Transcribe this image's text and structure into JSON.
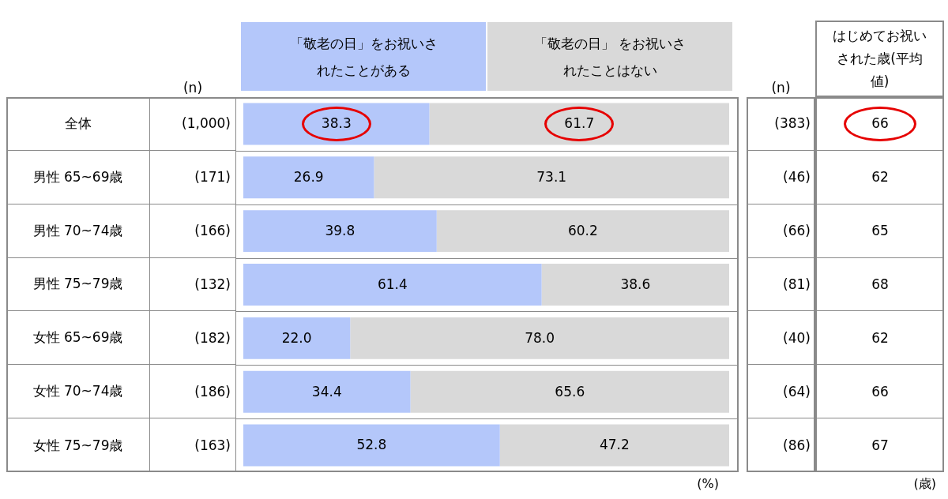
{
  "chart_data": [
    {
      "type": "bar",
      "orientation": "horizontal",
      "stacked": true,
      "legend": "top",
      "tick_labels": "y",
      "data_labels": true,
      "xlim": [
        0,
        100
      ],
      "categories": [
        "全体",
        "男性 65~69歳",
        "男性 70~74歳",
        "男性 75~79歳",
        "女性 65~69歳",
        "女性 70~74歳",
        "女性 75~79歳"
      ],
      "series": [
        {
          "name": "「敬老の日」をお祝いされたことがある",
          "color": "#b4c7fa",
          "values": [
            38.3,
            26.9,
            39.8,
            61.4,
            22.0,
            34.4,
            52.8
          ],
          "value_labels": [
            "38.3",
            "26.9",
            "39.8",
            "61.4",
            "22.0",
            "34.4",
            "52.8"
          ]
        },
        {
          "name": "「敬老の日」 をお祝いされたことはない",
          "color": "#d9d9d9",
          "values": [
            61.7,
            73.1,
            60.2,
            38.6,
            78.0,
            65.6,
            47.2
          ],
          "value_labels": [
            "61.7",
            "73.1",
            "60.2",
            "38.6",
            "78.0",
            "65.6",
            "47.2"
          ]
        }
      ],
      "annotations": [
        "(%)"
      ]
    },
    {
      "type": "other",
      "title": "(n)",
      "values": [
        1000,
        171,
        166,
        132,
        182,
        186,
        163
      ],
      "value_labels": [
        "(1,000)",
        "(171)",
        "(166)",
        "(132)",
        "(182)",
        "(186)",
        "(163)"
      ]
    },
    {
      "type": "other",
      "title": "(n)",
      "values": [
        383,
        46,
        66,
        81,
        40,
        64,
        86
      ],
      "value_labels": [
        "(383)",
        "(46)",
        "(66)",
        "(81)",
        "(40)",
        "(64)",
        "(86)"
      ]
    },
    {
      "type": "other",
      "title": "はじめてお祝いされた歳(平均値)",
      "values": [
        66,
        62,
        65,
        68,
        62,
        66,
        67
      ],
      "data_labels": true,
      "annotations": [
        "(歳)"
      ]
    }
  ]
}
